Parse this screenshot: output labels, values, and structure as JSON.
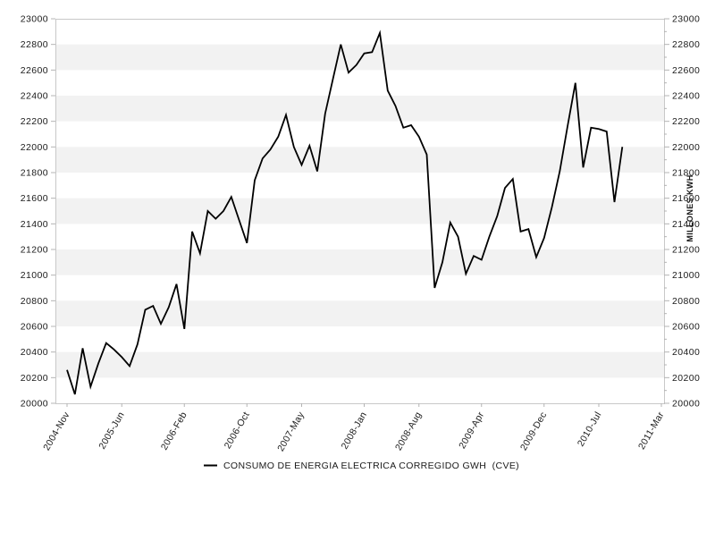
{
  "chart_data": {
    "type": "line",
    "title": "",
    "ylabel_right": "MILLONES KWH",
    "xlabel": "",
    "ylim": [
      20000,
      23000
    ],
    "y_major_step": 200,
    "y_minor_step": 100,
    "grid": "alternating horizontal bands",
    "legend_position": "bottom-center",
    "x_total_months": 76,
    "x_ticks": [
      {
        "label": "2004-Nov",
        "month_index": 0
      },
      {
        "label": "2005-Jun",
        "month_index": 7
      },
      {
        "label": "2006-Feb",
        "month_index": 15
      },
      {
        "label": "2006-Oct",
        "month_index": 23
      },
      {
        "label": "2007-May",
        "month_index": 30
      },
      {
        "label": "2008-Jan",
        "month_index": 38
      },
      {
        "label": "2008-Aug",
        "month_index": 45
      },
      {
        "label": "2009-Apr",
        "month_index": 53
      },
      {
        "label": "2009-Dec",
        "month_index": 61
      },
      {
        "label": "2010-Jul",
        "month_index": 68
      },
      {
        "label": "2011-Mar",
        "month_index": 76
      }
    ],
    "series": [
      {
        "name": "CONSUMO DE ENERGIA ELECTRICA CORREGIDO GWH  (CVE)",
        "start_month": "2004-Nov",
        "frequency": "monthly",
        "values": [
          20260,
          20070,
          20430,
          20130,
          20310,
          20470,
          20420,
          20360,
          20290,
          20460,
          20730,
          20760,
          20620,
          20750,
          20930,
          20580,
          21340,
          21170,
          21500,
          21440,
          21500,
          21610,
          21430,
          21250,
          21740,
          21910,
          21980,
          22080,
          22250,
          22000,
          21860,
          22010,
          21810,
          22260,
          22530,
          22800,
          22580,
          22640,
          22730,
          22740,
          22890,
          22440,
          22320,
          22150,
          22170,
          22080,
          21940,
          20900,
          21100,
          21410,
          21300,
          21010,
          21150,
          21120,
          21300,
          21460,
          21680,
          21750,
          21340,
          21360,
          21140,
          21290,
          21530,
          21810,
          22160,
          22500,
          21840,
          22150,
          22140,
          22120,
          21570,
          22000
        ]
      }
    ],
    "y_tick_labels": [
      "20000",
      "20200",
      "20400",
      "20600",
      "20800",
      "21000",
      "21200",
      "21400",
      "21600",
      "21800",
      "22000",
      "22200",
      "22400",
      "22600",
      "22800",
      "23000"
    ],
    "colors": {
      "line": "#000000",
      "band": "#f2f2f2",
      "frame": "#c8c8c8",
      "tick": "#b4b4b4",
      "tick_text": "#1a1a1a",
      "background": "#ffffff"
    },
    "legend": {
      "marker": "line-segment",
      "label": "CONSUMO DE ENERGIA ELECTRICA CORREGIDO GWH  (CVE)"
    }
  }
}
